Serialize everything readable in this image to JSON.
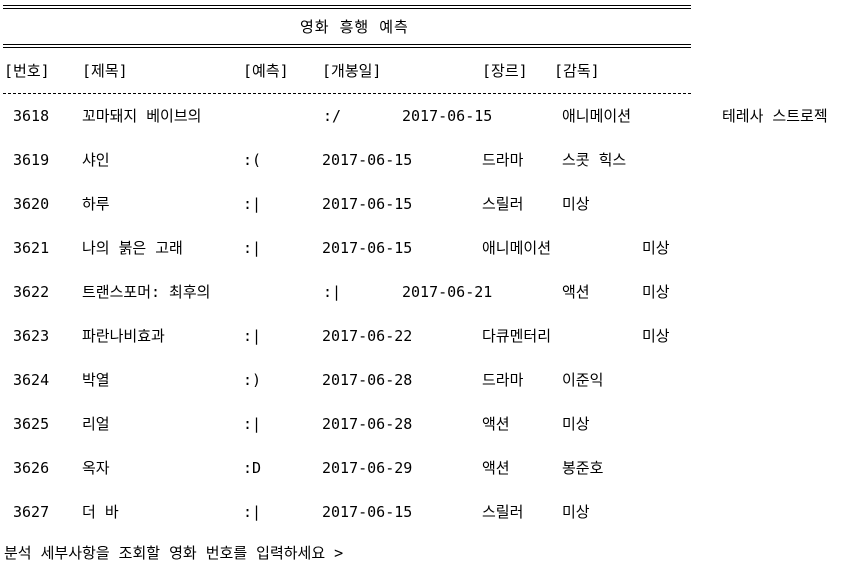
{
  "console": {
    "title": "영화 흥행 예측",
    "headers": {
      "no": "[번호]",
      "title": "[제목]",
      "prediction": "[예측]",
      "release": "[개봉일]",
      "genre": "[장르]",
      "director": "[감독]"
    },
    "rows": [
      {
        "no": "3618",
        "title": "꼬마돼지 베이브의",
        "prediction": ":/",
        "release": "2017-06-15",
        "genre": "애니메이션",
        "director": "테레사 스트로젝"
      },
      {
        "no": "3619",
        "title": "샤인",
        "prediction": ":(",
        "release": "2017-06-15",
        "genre": "드라마",
        "director": "스콧 힉스"
      },
      {
        "no": "3620",
        "title": "하루",
        "prediction": ":|",
        "release": "2017-06-15",
        "genre": "스릴러",
        "director": "미상"
      },
      {
        "no": "3621",
        "title": "나의 붉은 고래",
        "prediction": ":|",
        "release": "2017-06-15",
        "genre": "애니메이션",
        "director": "미상"
      },
      {
        "no": "3622",
        "title": "트랜스포머: 최후의",
        "prediction": ":|",
        "release": "2017-06-21",
        "genre": "액션",
        "director": "미상"
      },
      {
        "no": "3623",
        "title": "파란나비효과",
        "prediction": ":|",
        "release": "2017-06-22",
        "genre": "다큐멘터리",
        "director": "미상"
      },
      {
        "no": "3624",
        "title": "박열",
        "prediction": ":)",
        "release": "2017-06-28",
        "genre": "드라마",
        "director": "이준익"
      },
      {
        "no": "3625",
        "title": "리얼",
        "prediction": ":|",
        "release": "2017-06-28",
        "genre": "액션",
        "director": "미상"
      },
      {
        "no": "3626",
        "title": "옥자",
        "prediction": ":D",
        "release": "2017-06-29",
        "genre": "액션",
        "director": "봉준호"
      },
      {
        "no": "3627",
        "title": "더 바",
        "prediction": ":|",
        "release": "2017-06-15",
        "genre": "스릴러",
        "director": "미상"
      }
    ],
    "prompt": "분석 세부사항을 조회할 영화 번호를 입력하세요 >"
  }
}
